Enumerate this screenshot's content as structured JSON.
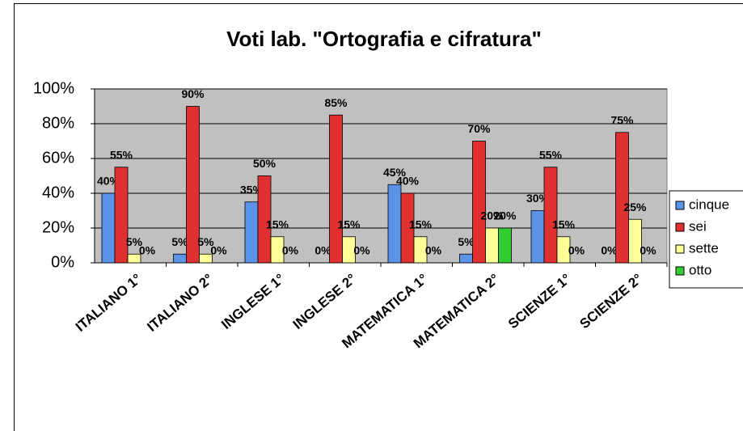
{
  "chart_data": {
    "type": "bar",
    "title": "Voti lab. \"Ortografia e cifratura\"",
    "categories": [
      "ITALIANO 1°",
      "ITALIANO 2°",
      "INGLESE 1°",
      "INGLESE 2°",
      "MATEMATICA 1°",
      "MATEMATICA 2°",
      "SCIENZE 1°",
      "SCIENZE 2°"
    ],
    "series": [
      {
        "name": "cinque",
        "color": "#5b93e6",
        "values": [
          40,
          5,
          35,
          0,
          45,
          5,
          30,
          0
        ],
        "value_labels": [
          "40%",
          "5%",
          "35%",
          "0%",
          "45%",
          "5%",
          "30%",
          "0%"
        ]
      },
      {
        "name": "sei",
        "color": "#e03030",
        "values": [
          55,
          90,
          50,
          85,
          40,
          70,
          55,
          75
        ],
        "value_labels": [
          "55%",
          "90%",
          "50%",
          "85%",
          "40%",
          "70%",
          "55%",
          "75%"
        ]
      },
      {
        "name": "sette",
        "color": "#ffff99",
        "values": [
          5,
          5,
          15,
          15,
          15,
          20,
          15,
          25
        ],
        "value_labels": [
          "5%",
          "5%",
          "15%",
          "15%",
          "15%",
          "20%",
          "15%",
          "25%"
        ]
      },
      {
        "name": "otto",
        "color": "#33cc33",
        "values": [
          0,
          0,
          0,
          0,
          0,
          20,
          0,
          0
        ],
        "value_labels": [
          "0%",
          "0%",
          "0%",
          "0%",
          "0%",
          "20%",
          "0%",
          "0%"
        ]
      }
    ],
    "ylim": [
      0,
      100
    ],
    "yticks": [
      {
        "value": 0,
        "label": "0%"
      },
      {
        "value": 20,
        "label": "20%"
      },
      {
        "value": 40,
        "label": "40%"
      },
      {
        "value": 60,
        "label": "60%"
      },
      {
        "value": 80,
        "label": "80%"
      },
      {
        "value": 100,
        "label": "100%"
      }
    ],
    "grid": true,
    "legend": "right"
  }
}
